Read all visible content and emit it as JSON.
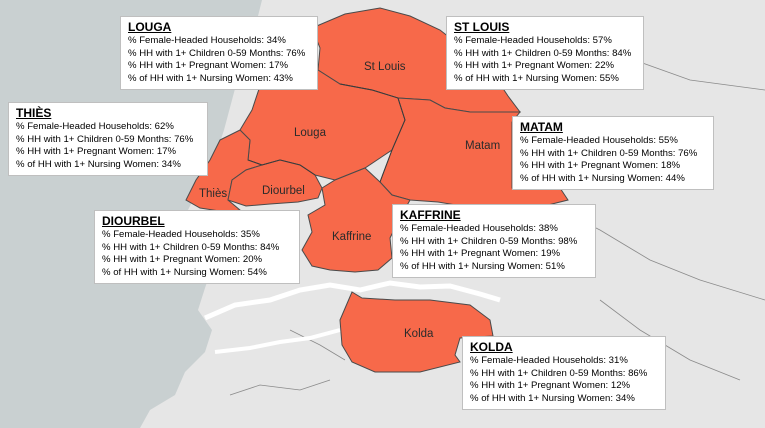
{
  "colors": {
    "ocean": "#c9d0d1",
    "land": "#e6e6e6",
    "highlight": "#f7694a",
    "border": "#4a4a4a",
    "river": "#ffffff"
  },
  "map_labels": {
    "st_louis": "St Louis",
    "louga": "Louga",
    "matam": "Matam",
    "thies": "Thiès",
    "diourbel": "Diourbel",
    "kaffrine": "Kaffrine",
    "kolda": "Kolda"
  },
  "callouts": {
    "louga": {
      "title": "LOUGA",
      "lines": [
        "% Female-Headed Households: 34%",
        "% HH with 1+ Children 0-59 Months: 76%",
        "% HH with 1+ Pregnant Women: 17%",
        "% of HH with 1+ Nursing Women: 43%"
      ]
    },
    "st_louis": {
      "title": "ST LOUIS",
      "lines": [
        "% Female-Headed Households: 57%",
        "% HH with 1+ Children 0-59 Months: 84%",
        "% HH with 1+ Pregnant Women: 22%",
        "% of HH with 1+ Nursing Women: 55%"
      ]
    },
    "thies": {
      "title": "THIÈS",
      "lines": [
        "% Female-Headed Households: 62%",
        "% HH with 1+ Children 0-59 Months: 76%",
        "% HH with 1+ Pregnant Women: 17%",
        "% of HH with 1+ Nursing Women: 34%"
      ]
    },
    "matam": {
      "title": "MATAM",
      "lines": [
        "% Female-Headed Households: 55%",
        "% HH with 1+ Children 0-59 Months: 76%",
        "% HH with 1+ Pregnant Women: 18%",
        "% of HH with 1+ Nursing Women: 44%"
      ]
    },
    "diourbel": {
      "title": "DIOURBEL",
      "lines": [
        "% Female-Headed Households:  35%",
        "% HH with 1+ Children 0-59 Months: 84%",
        "% HH with 1+ Pregnant Women: 20%",
        "% of HH with 1+ Nursing Women: 54%"
      ]
    },
    "kaffrine": {
      "title": "KAFFRINE",
      "lines": [
        "% Female-Headed Households: 38%",
        "% HH with 1+ Children 0-59 Months: 98%",
        "% HH with 1+ Pregnant Women: 19%",
        "% of HH with 1+ Nursing Women: 51%"
      ]
    },
    "kolda": {
      "title": "KOLDA",
      "lines": [
        "% Female-Headed Households:  31%",
        "% HH with 1+ Children 0-59 Months: 86%",
        "% HH with 1+ Pregnant Women: 12%",
        "% of HH with 1+ Nursing Women: 34%"
      ]
    }
  }
}
